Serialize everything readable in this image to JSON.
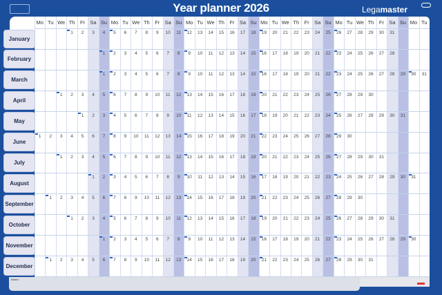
{
  "header": {
    "title": "Year planner 2026",
    "brand_light": "Lega",
    "brand_bold": "master"
  },
  "weekdays": [
    "Mo",
    "Tu",
    "We",
    "Th",
    "Fr",
    "Sa",
    "Su"
  ],
  "columns": 37,
  "months": [
    {
      "name": "January",
      "start": 3,
      "days": 31
    },
    {
      "name": "February",
      "start": 6,
      "days": 28
    },
    {
      "name": "March",
      "start": 6,
      "days": 31
    },
    {
      "name": "April",
      "start": 2,
      "days": 30
    },
    {
      "name": "May",
      "start": 4,
      "days": 31
    },
    {
      "name": "June",
      "start": 0,
      "days": 30
    },
    {
      "name": "July",
      "start": 2,
      "days": 31
    },
    {
      "name": "August",
      "start": 5,
      "days": 31
    },
    {
      "name": "September",
      "start": 1,
      "days": 30
    },
    {
      "name": "October",
      "start": 3,
      "days": 31
    },
    {
      "name": "November",
      "start": 6,
      "days": 30
    },
    {
      "name": "December",
      "start": 1,
      "days": 31
    }
  ],
  "notes": {
    "label": "Notes:"
  },
  "colors": {
    "frame": "#1b4f9e",
    "saturday": "#e2e4f3",
    "sunday": "#b9c0e4",
    "week_marker": "#2a62c4"
  }
}
